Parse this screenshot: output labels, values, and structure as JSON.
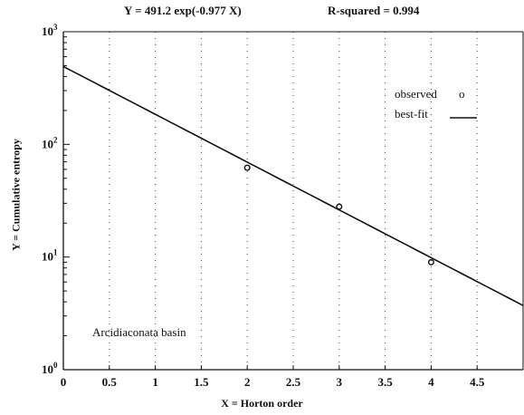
{
  "header": {
    "equation": "Y = 491.2 exp(-0.977 X)",
    "r_squared": "R-squared = 0.994"
  },
  "legend": {
    "observed_label": "observed",
    "observed_marker": "o",
    "fit_label": "best-fit"
  },
  "annotation": "Arcidiaconata basin",
  "chart_data": {
    "type": "scatter",
    "title": "Y = 491.2 exp(-0.977 X)",
    "subtitle": "R-squared = 0.994",
    "xlabel": "X = Horton order",
    "ylabel": "Y = Cumulative entropy",
    "xlim": [
      0,
      5
    ],
    "ylim": [
      1,
      1000
    ],
    "yscale": "log",
    "x_ticks": [
      "0",
      "0.5",
      "1",
      "1.5",
      "2",
      "2.5",
      "3",
      "3.5",
      "4",
      "4.5"
    ],
    "y_ticks": [
      {
        "base": "10",
        "exp": "0"
      },
      {
        "base": "10",
        "exp": "1"
      },
      {
        "base": "10",
        "exp": "2"
      },
      {
        "base": "10",
        "exp": "3"
      }
    ],
    "series": [
      {
        "name": "observed",
        "kind": "points",
        "x": [
          2,
          3,
          4
        ],
        "y": [
          62,
          28,
          9
        ]
      },
      {
        "name": "best-fit",
        "kind": "line",
        "model": "exponential",
        "a": 491.2,
        "b": -0.977,
        "x_range": [
          0,
          5
        ]
      }
    ],
    "grid": "dotted vertical",
    "legend_position": "top-right",
    "annotation": "Arcidiaconata basin"
  }
}
